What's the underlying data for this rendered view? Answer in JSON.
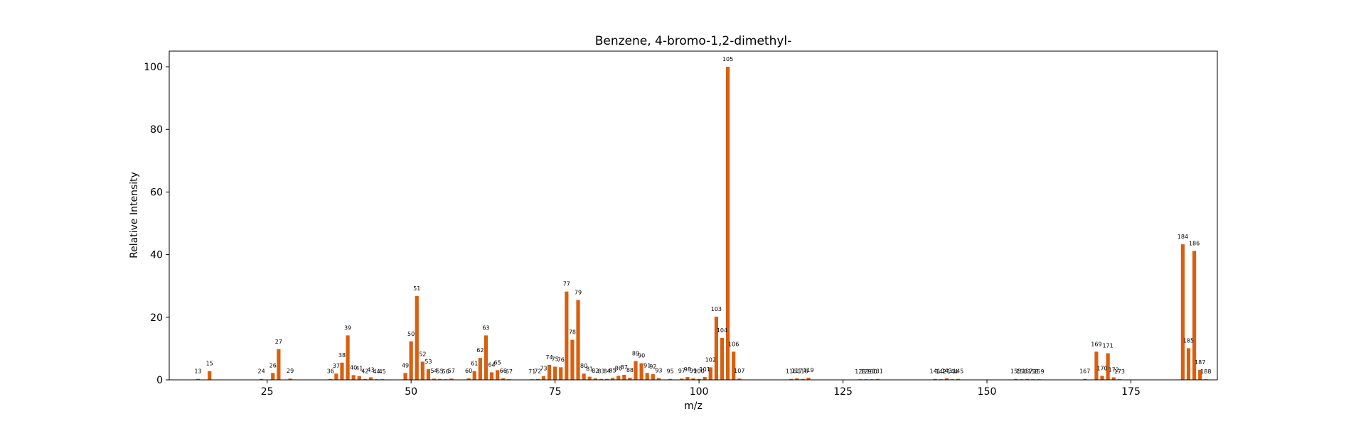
{
  "chart_data": {
    "type": "bar",
    "title": "Benzene, 4-bromo-1,2-dimethyl-",
    "xlabel": "m/z",
    "ylabel": "Relative Intensity",
    "xlim": [
      8,
      190
    ],
    "ylim": [
      0,
      105
    ],
    "xticks": [
      25,
      50,
      75,
      100,
      125,
      150,
      175
    ],
    "yticks": [
      0,
      20,
      40,
      60,
      80,
      100
    ],
    "bar_color": "#d95f0e",
    "grid": false,
    "legend": "none",
    "peaks": [
      {
        "mz": 13,
        "intensity": 0.3
      },
      {
        "mz": 15,
        "intensity": 2.8
      },
      {
        "mz": 24,
        "intensity": 0.3
      },
      {
        "mz": 26,
        "intensity": 2.2
      },
      {
        "mz": 27,
        "intensity": 9.8
      },
      {
        "mz": 29,
        "intensity": 0.4
      },
      {
        "mz": 36,
        "intensity": 0.3
      },
      {
        "mz": 37,
        "intensity": 2.0
      },
      {
        "mz": 38,
        "intensity": 5.5
      },
      {
        "mz": 39,
        "intensity": 14.2
      },
      {
        "mz": 40,
        "intensity": 1.5
      },
      {
        "mz": 41,
        "intensity": 1.2
      },
      {
        "mz": 42,
        "intensity": 0.3
      },
      {
        "mz": 43,
        "intensity": 0.8
      },
      {
        "mz": 44,
        "intensity": 0.2
      },
      {
        "mz": 45,
        "intensity": 0.2
      },
      {
        "mz": 49,
        "intensity": 2.2
      },
      {
        "mz": 50,
        "intensity": 12.3
      },
      {
        "mz": 51,
        "intensity": 26.8
      },
      {
        "mz": 52,
        "intensity": 5.8
      },
      {
        "mz": 53,
        "intensity": 3.4
      },
      {
        "mz": 54,
        "intensity": 0.4
      },
      {
        "mz": 55,
        "intensity": 0.3
      },
      {
        "mz": 56,
        "intensity": 0.2
      },
      {
        "mz": 57,
        "intensity": 0.4
      },
      {
        "mz": 60,
        "intensity": 0.5
      },
      {
        "mz": 61,
        "intensity": 2.8
      },
      {
        "mz": 62,
        "intensity": 7.0
      },
      {
        "mz": 63,
        "intensity": 14.2
      },
      {
        "mz": 64,
        "intensity": 2.4
      },
      {
        "mz": 65,
        "intensity": 3.1
      },
      {
        "mz": 66,
        "intensity": 0.5
      },
      {
        "mz": 67,
        "intensity": 0.2
      },
      {
        "mz": 71,
        "intensity": 0.2
      },
      {
        "mz": 72,
        "intensity": 0.3
      },
      {
        "mz": 73,
        "intensity": 1.2
      },
      {
        "mz": 74,
        "intensity": 4.8
      },
      {
        "mz": 75,
        "intensity": 4.2
      },
      {
        "mz": 76,
        "intensity": 4.0
      },
      {
        "mz": 77,
        "intensity": 28.2
      },
      {
        "mz": 78,
        "intensity": 12.8
      },
      {
        "mz": 79,
        "intensity": 25.5
      },
      {
        "mz": 80,
        "intensity": 2.0
      },
      {
        "mz": 81,
        "intensity": 1.0
      },
      {
        "mz": 82,
        "intensity": 0.5
      },
      {
        "mz": 83,
        "intensity": 0.3
      },
      {
        "mz": 84,
        "intensity": 0.3
      },
      {
        "mz": 85,
        "intensity": 0.6
      },
      {
        "mz": 86,
        "intensity": 1.3
      },
      {
        "mz": 87,
        "intensity": 1.6
      },
      {
        "mz": 88,
        "intensity": 0.7
      },
      {
        "mz": 89,
        "intensity": 6.0
      },
      {
        "mz": 90,
        "intensity": 5.3
      },
      {
        "mz": 91,
        "intensity": 2.2
      },
      {
        "mz": 92,
        "intensity": 1.8
      },
      {
        "mz": 93,
        "intensity": 0.6
      },
      {
        "mz": 95,
        "intensity": 0.3
      },
      {
        "mz": 97,
        "intensity": 0.4
      },
      {
        "mz": 98,
        "intensity": 0.9
      },
      {
        "mz": 99,
        "intensity": 0.5
      },
      {
        "mz": 100,
        "intensity": 0.3
      },
      {
        "mz": 101,
        "intensity": 0.9
      },
      {
        "mz": 102,
        "intensity": 4.0
      },
      {
        "mz": 103,
        "intensity": 20.2
      },
      {
        "mz": 104,
        "intensity": 13.4
      },
      {
        "mz": 105,
        "intensity": 100
      },
      {
        "mz": 106,
        "intensity": 9.0
      },
      {
        "mz": 107,
        "intensity": 0.4
      },
      {
        "mz": 116,
        "intensity": 0.3
      },
      {
        "mz": 117,
        "intensity": 0.5
      },
      {
        "mz": 118,
        "intensity": 0.3
      },
      {
        "mz": 119,
        "intensity": 0.7
      },
      {
        "mz": 128,
        "intensity": 0.2
      },
      {
        "mz": 129,
        "intensity": 0.2
      },
      {
        "mz": 130,
        "intensity": 0.2
      },
      {
        "mz": 131,
        "intensity": 0.3
      },
      {
        "mz": 141,
        "intensity": 0.3
      },
      {
        "mz": 142,
        "intensity": 0.2
      },
      {
        "mz": 143,
        "intensity": 0.5
      },
      {
        "mz": 144,
        "intensity": 0.2
      },
      {
        "mz": 145,
        "intensity": 0.3
      },
      {
        "mz": 155,
        "intensity": 0.3
      },
      {
        "mz": 156,
        "intensity": 0.2
      },
      {
        "mz": 157,
        "intensity": 0.3
      },
      {
        "mz": 158,
        "intensity": 0.2
      },
      {
        "mz": 159,
        "intensity": 0.2
      },
      {
        "mz": 167,
        "intensity": 0.3
      },
      {
        "mz": 169,
        "intensity": 9.0
      },
      {
        "mz": 170,
        "intensity": 1.3
      },
      {
        "mz": 171,
        "intensity": 8.5
      },
      {
        "mz": 172,
        "intensity": 0.8
      },
      {
        "mz": 173,
        "intensity": 0.2
      },
      {
        "mz": 184,
        "intensity": 43.3
      },
      {
        "mz": 185,
        "intensity": 10.1
      },
      {
        "mz": 186,
        "intensity": 41.2
      },
      {
        "mz": 187,
        "intensity": 3.2
      },
      {
        "mz": 188,
        "intensity": 0.2
      }
    ]
  }
}
